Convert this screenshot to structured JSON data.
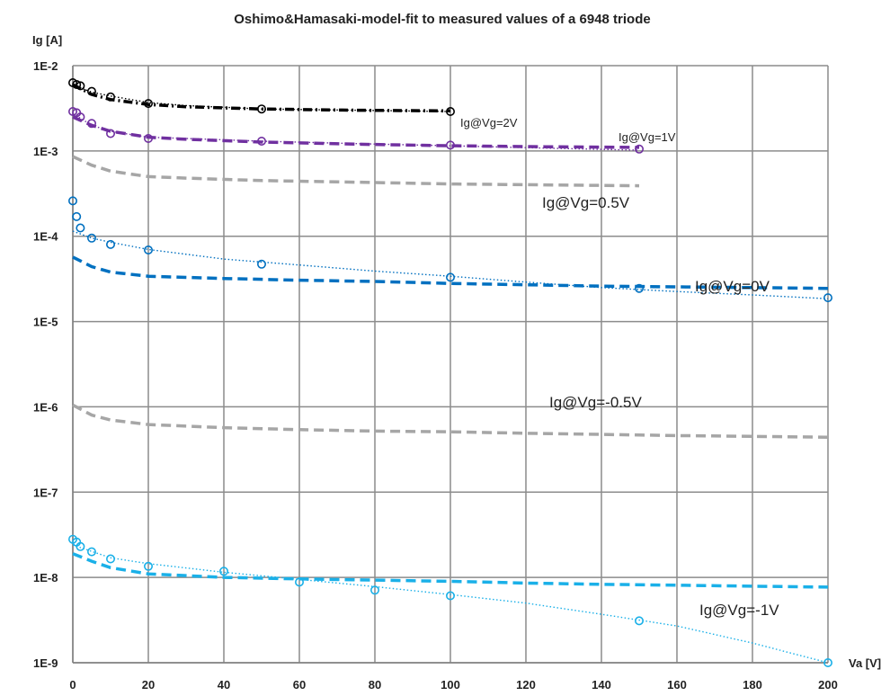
{
  "chart_data": {
    "type": "scatter",
    "title": "Oshimo&Hamasaki-model-fit to measured values of a 6948 triode",
    "ylabel": "Ig [A]",
    "xlabel": "Va [V]",
    "x_scale": "linear",
    "y_scale": "log",
    "xlim": [
      0,
      200
    ],
    "ylim": [
      1e-09,
      0.01
    ],
    "x_ticks": [
      0,
      20,
      40,
      60,
      80,
      100,
      120,
      140,
      160,
      180,
      200
    ],
    "y_ticks": [
      {
        "value": 0.01,
        "label": "1E-2"
      },
      {
        "value": 0.001,
        "label": "1E-3"
      },
      {
        "value": 0.0001,
        "label": "1E-4"
      },
      {
        "value": 1e-05,
        "label": "1E-5"
      },
      {
        "value": 1e-06,
        "label": "1E-6"
      },
      {
        "value": 1e-07,
        "label": "1E-7"
      },
      {
        "value": 1e-08,
        "label": "1E-8"
      },
      {
        "value": 1e-09,
        "label": "1E-9"
      }
    ],
    "grid": true,
    "series": [
      {
        "name": "Ig@Vg=2V",
        "color": "#000000",
        "label_font_size": 13,
        "measured": [
          [
            0,
            0.0063
          ],
          [
            1,
            0.006
          ],
          [
            2,
            0.0058
          ],
          [
            5,
            0.005
          ],
          [
            10,
            0.0043
          ],
          [
            20,
            0.0036
          ],
          [
            50,
            0.0031
          ],
          [
            100,
            0.0029
          ]
        ],
        "trend": [
          [
            0,
            0.0059
          ],
          [
            5,
            0.0049
          ],
          [
            10,
            0.0044
          ],
          [
            20,
            0.0037
          ],
          [
            30,
            0.0034
          ],
          [
            50,
            0.0031
          ],
          [
            75,
            0.003
          ],
          [
            100,
            0.0029
          ]
        ],
        "model": [
          [
            0,
            0.006
          ],
          [
            5,
            0.0046
          ],
          [
            10,
            0.004
          ],
          [
            20,
            0.0035
          ],
          [
            30,
            0.0033
          ],
          [
            50,
            0.0031
          ],
          [
            75,
            0.003
          ],
          [
            100,
            0.00295
          ]
        ]
      },
      {
        "name": "Ig@Vg=1V",
        "color": "#7030a0",
        "label_font_size": 13,
        "measured": [
          [
            0,
            0.0029
          ],
          [
            1,
            0.0028
          ],
          [
            2,
            0.0025
          ],
          [
            5,
            0.0021
          ],
          [
            10,
            0.0016
          ],
          [
            20,
            0.0014
          ],
          [
            50,
            0.0013
          ],
          [
            100,
            0.00117
          ],
          [
            150,
            0.00105
          ]
        ],
        "trend": [
          [
            0,
            0.00275
          ],
          [
            5,
            0.002
          ],
          [
            10,
            0.0017
          ],
          [
            20,
            0.00145
          ],
          [
            30,
            0.0014
          ],
          [
            50,
            0.0013
          ],
          [
            75,
            0.00122
          ],
          [
            100,
            0.00115
          ],
          [
            125,
            0.00108
          ],
          [
            150,
            0.00102
          ]
        ],
        "model": [
          [
            0,
            0.0025
          ],
          [
            5,
            0.002
          ],
          [
            10,
            0.0017
          ],
          [
            20,
            0.00145
          ],
          [
            30,
            0.00137
          ],
          [
            50,
            0.00127
          ],
          [
            75,
            0.0012
          ],
          [
            100,
            0.00115
          ],
          [
            125,
            0.00112
          ],
          [
            150,
            0.0011
          ]
        ]
      },
      {
        "name": "Ig@Vg=0.5V",
        "color": "#a6a6a6",
        "label_font_size": 17,
        "model": [
          [
            0,
            0.00086
          ],
          [
            5,
            0.00068
          ],
          [
            10,
            0.00058
          ],
          [
            20,
            0.0005
          ],
          [
            30,
            0.00048
          ],
          [
            50,
            0.00045
          ],
          [
            75,
            0.00043
          ],
          [
            100,
            0.00041
          ],
          [
            125,
            0.0004
          ],
          [
            150,
            0.00039
          ]
        ]
      },
      {
        "name": "Ig@Vg=0V",
        "color": "#0070c0",
        "label_font_size": 17,
        "measured": [
          [
            0,
            0.00026
          ],
          [
            1,
            0.00017
          ],
          [
            2,
            0.000125
          ],
          [
            5,
            9.5e-05
          ],
          [
            10,
            8e-05
          ],
          [
            20,
            6.9e-05
          ],
          [
            50,
            4.7e-05
          ],
          [
            100,
            3.3e-05
          ],
          [
            150,
            2.45e-05
          ],
          [
            200,
            1.9e-05
          ]
        ],
        "trend": [
          [
            0,
            0.000115
          ],
          [
            5,
            9.5e-05
          ],
          [
            10,
            8.5e-05
          ],
          [
            20,
            7e-05
          ],
          [
            40,
            5.4e-05
          ],
          [
            60,
            4.6e-05
          ],
          [
            80,
            3.9e-05
          ],
          [
            100,
            3.4e-05
          ],
          [
            120,
            2.9e-05
          ],
          [
            140,
            2.5e-05
          ],
          [
            160,
            2.25e-05
          ],
          [
            180,
            2.05e-05
          ],
          [
            200,
            1.85e-05
          ]
        ],
        "model": [
          [
            0,
            5.7e-05
          ],
          [
            5,
            4.4e-05
          ],
          [
            10,
            3.8e-05
          ],
          [
            20,
            3.4e-05
          ],
          [
            40,
            3.2e-05
          ],
          [
            60,
            3.05e-05
          ],
          [
            80,
            2.95e-05
          ],
          [
            100,
            2.8e-05
          ],
          [
            120,
            2.7e-05
          ],
          [
            140,
            2.6e-05
          ],
          [
            160,
            2.55e-05
          ],
          [
            180,
            2.5e-05
          ],
          [
            200,
            2.45e-05
          ]
        ]
      },
      {
        "name": "Ig@Vg=-0.5V",
        "color": "#a6a6a6",
        "label_font_size": 17,
        "model": [
          [
            0,
            1.05e-06
          ],
          [
            5,
            8e-07
          ],
          [
            10,
            7e-07
          ],
          [
            20,
            6.2e-07
          ],
          [
            40,
            5.7e-07
          ],
          [
            60,
            5.4e-07
          ],
          [
            80,
            5.2e-07
          ],
          [
            100,
            5.1e-07
          ],
          [
            120,
            4.9e-07
          ],
          [
            140,
            4.75e-07
          ],
          [
            160,
            4.6e-07
          ],
          [
            180,
            4.5e-07
          ],
          [
            200,
            4.4e-07
          ]
        ]
      },
      {
        "name": "Ig@Vg=-1V",
        "color": "#1ab0e8",
        "label_font_size": 17,
        "measured": [
          [
            0,
            2.8e-08
          ],
          [
            1,
            2.6e-08
          ],
          [
            2,
            2.3e-08
          ],
          [
            5,
            2e-08
          ],
          [
            10,
            1.65e-08
          ],
          [
            20,
            1.35e-08
          ],
          [
            40,
            1.18e-08
          ],
          [
            60,
            8.8e-09
          ],
          [
            80,
            7.1e-09
          ],
          [
            100,
            6.1e-09
          ],
          [
            150,
            3.1e-09
          ],
          [
            200,
            1e-09
          ]
        ],
        "trend": [
          [
            0,
            2.4e-08
          ],
          [
            10,
            1.7e-08
          ],
          [
            20,
            1.45e-08
          ],
          [
            40,
            1.15e-08
          ],
          [
            60,
            9.5e-09
          ],
          [
            80,
            7.8e-09
          ],
          [
            100,
            6.3e-09
          ],
          [
            120,
            5e-09
          ],
          [
            140,
            3.7e-09
          ],
          [
            160,
            2.7e-09
          ],
          [
            180,
            1.7e-09
          ],
          [
            200,
            1e-09
          ]
        ],
        "model": [
          [
            0,
            1.9e-08
          ],
          [
            5,
            1.55e-08
          ],
          [
            10,
            1.3e-08
          ],
          [
            20,
            1.1e-08
          ],
          [
            40,
            1e-08
          ],
          [
            60,
            9.6e-09
          ],
          [
            80,
            9.3e-09
          ],
          [
            100,
            9e-09
          ],
          [
            120,
            8.6e-09
          ],
          [
            140,
            8.3e-09
          ],
          [
            160,
            8.1e-09
          ],
          [
            180,
            7.9e-09
          ],
          [
            200,
            7.7e-09
          ]
        ]
      }
    ]
  }
}
